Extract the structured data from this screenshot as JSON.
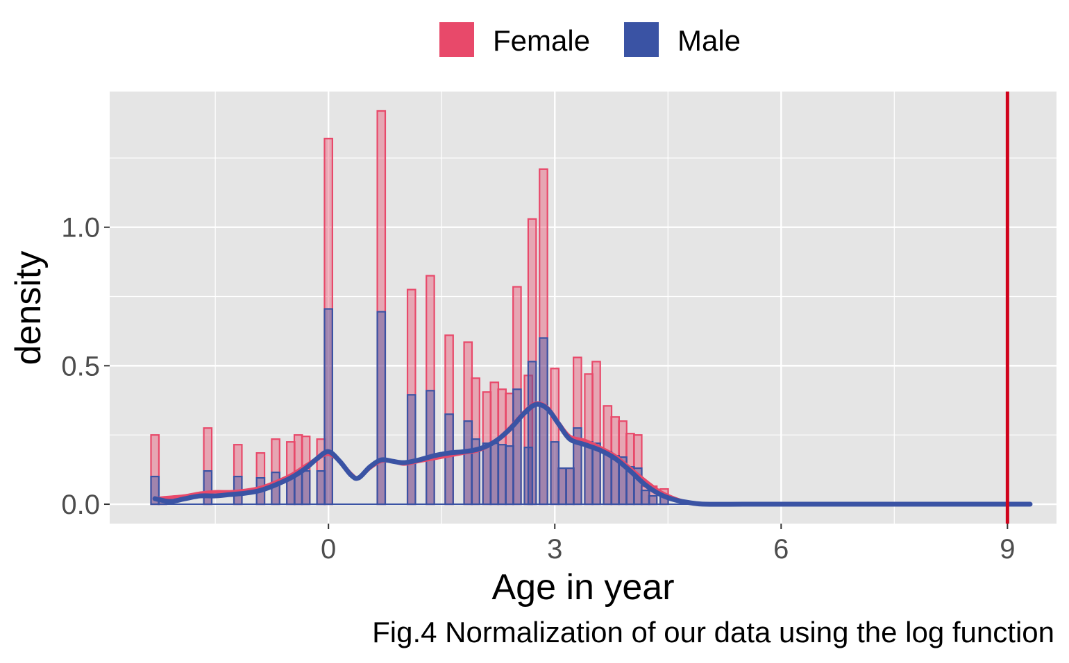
{
  "chart_data": {
    "type": "bar",
    "xlabel": "Age in year",
    "ylabel": "density",
    "caption": "Fig.4 Normalization of our data using the log function",
    "xlim": [
      -2.9,
      9.65
    ],
    "ylim": [
      -0.07,
      1.49
    ],
    "x_ticks": [
      0,
      3,
      6,
      9
    ],
    "x_tick_labels": [
      "0",
      "3",
      "6",
      "9"
    ],
    "y_ticks": [
      0.0,
      0.5,
      1.0
    ],
    "y_tick_labels": [
      "0.0",
      "0.5",
      "1.0"
    ],
    "grid": true,
    "legend": {
      "placement": "top",
      "entries": [
        {
          "label": "Female",
          "color": "#e8496a"
        },
        {
          "label": "Male",
          "color": "#3a53a4"
        }
      ]
    },
    "bin_width": 0.105,
    "series": [
      {
        "name": "Female",
        "color": "#e8496a",
        "bins": [
          {
            "x": -2.3,
            "value": 0.25
          },
          {
            "x": -2.2,
            "value": 0.02
          },
          {
            "x": -1.6,
            "value": 0.275
          },
          {
            "x": -1.2,
            "value": 0.215
          },
          {
            "x": -0.9,
            "value": 0.185
          },
          {
            "x": -0.7,
            "value": 0.235
          },
          {
            "x": -0.5,
            "value": 0.225
          },
          {
            "x": -0.4,
            "value": 0.25
          },
          {
            "x": -0.3,
            "value": 0.245
          },
          {
            "x": -0.1,
            "value": 0.235
          },
          {
            "x": 0.0,
            "value": 1.32
          },
          {
            "x": 0.7,
            "value": 1.42
          },
          {
            "x": 1.1,
            "value": 0.775
          },
          {
            "x": 1.35,
            "value": 0.825
          },
          {
            "x": 1.6,
            "value": 0.61
          },
          {
            "x": 1.85,
            "value": 0.585
          },
          {
            "x": 1.95,
            "value": 0.455
          },
          {
            "x": 2.1,
            "value": 0.405
          },
          {
            "x": 2.2,
            "value": 0.44
          },
          {
            "x": 2.3,
            "value": 0.415
          },
          {
            "x": 2.4,
            "value": 0.4
          },
          {
            "x": 2.5,
            "value": 0.785
          },
          {
            "x": 2.65,
            "value": 0.465
          },
          {
            "x": 2.7,
            "value": 1.03
          },
          {
            "x": 2.85,
            "value": 1.21
          },
          {
            "x": 3.0,
            "value": 0.49
          },
          {
            "x": 3.1,
            "value": 0.13
          },
          {
            "x": 3.2,
            "value": 0.13
          },
          {
            "x": 3.3,
            "value": 0.53
          },
          {
            "x": 3.45,
            "value": 0.47
          },
          {
            "x": 3.55,
            "value": 0.515
          },
          {
            "x": 3.7,
            "value": 0.355
          },
          {
            "x": 3.8,
            "value": 0.315
          },
          {
            "x": 3.9,
            "value": 0.3
          },
          {
            "x": 4.0,
            "value": 0.255
          },
          {
            "x": 4.1,
            "value": 0.25
          },
          {
            "x": 4.2,
            "value": 0.065
          },
          {
            "x": 4.3,
            "value": 0.065
          },
          {
            "x": 4.45,
            "value": 0.055
          }
        ],
        "density_curve": {
          "x": [
            -2.3,
            -2.1,
            -1.9,
            -1.7,
            -1.5,
            -1.3,
            -1.1,
            -0.9,
            -0.7,
            -0.5,
            -0.3,
            -0.15,
            0.0,
            0.15,
            0.3,
            0.4,
            0.55,
            0.7,
            0.85,
            1.0,
            1.2,
            1.4,
            1.6,
            1.8,
            2.0,
            2.2,
            2.4,
            2.6,
            2.75,
            2.9,
            3.05,
            3.2,
            3.4,
            3.6,
            3.8,
            4.0,
            4.2,
            4.4,
            4.6,
            4.8,
            5.0,
            5.5,
            6.0,
            7.0,
            8.0,
            9.0,
            9.3
          ],
          "y": [
            0.02,
            0.025,
            0.03,
            0.04,
            0.045,
            0.045,
            0.05,
            0.06,
            0.08,
            0.105,
            0.14,
            0.165,
            0.18,
            0.155,
            0.11,
            0.095,
            0.13,
            0.155,
            0.155,
            0.145,
            0.155,
            0.165,
            0.175,
            0.185,
            0.195,
            0.225,
            0.275,
            0.335,
            0.365,
            0.35,
            0.295,
            0.245,
            0.23,
            0.205,
            0.175,
            0.13,
            0.085,
            0.045,
            0.02,
            0.005,
            0.0,
            0.0,
            0.0,
            0.0,
            0.0,
            0.0,
            0.0
          ]
        }
      },
      {
        "name": "Male",
        "color": "#3a53a4",
        "bins": [
          {
            "x": -2.3,
            "value": 0.1
          },
          {
            "x": -2.2,
            "value": 0.02
          },
          {
            "x": -1.6,
            "value": 0.12
          },
          {
            "x": -1.2,
            "value": 0.1
          },
          {
            "x": -0.9,
            "value": 0.095
          },
          {
            "x": -0.7,
            "value": 0.115
          },
          {
            "x": -0.5,
            "value": 0.1
          },
          {
            "x": -0.4,
            "value": 0.115
          },
          {
            "x": -0.3,
            "value": 0.12
          },
          {
            "x": -0.1,
            "value": 0.12
          },
          {
            "x": 0.0,
            "value": 0.705
          },
          {
            "x": 0.7,
            "value": 0.695
          },
          {
            "x": 1.1,
            "value": 0.395
          },
          {
            "x": 1.35,
            "value": 0.41
          },
          {
            "x": 1.6,
            "value": 0.325
          },
          {
            "x": 1.85,
            "value": 0.3
          },
          {
            "x": 1.95,
            "value": 0.235
          },
          {
            "x": 2.1,
            "value": 0.22
          },
          {
            "x": 2.2,
            "value": 0.22
          },
          {
            "x": 2.3,
            "value": 0.215
          },
          {
            "x": 2.4,
            "value": 0.21
          },
          {
            "x": 2.5,
            "value": 0.415
          },
          {
            "x": 2.65,
            "value": 0.205
          },
          {
            "x": 2.7,
            "value": 0.515
          },
          {
            "x": 2.85,
            "value": 0.6
          },
          {
            "x": 3.0,
            "value": 0.225
          },
          {
            "x": 3.1,
            "value": 0.13
          },
          {
            "x": 3.2,
            "value": 0.13
          },
          {
            "x": 3.3,
            "value": 0.275
          },
          {
            "x": 3.45,
            "value": 0.225
          },
          {
            "x": 3.55,
            "value": 0.22
          },
          {
            "x": 3.7,
            "value": 0.19
          },
          {
            "x": 3.8,
            "value": 0.175
          },
          {
            "x": 3.9,
            "value": 0.17
          },
          {
            "x": 4.0,
            "value": 0.135
          },
          {
            "x": 4.1,
            "value": 0.13
          },
          {
            "x": 4.2,
            "value": 0.05
          },
          {
            "x": 4.3,
            "value": 0.03
          },
          {
            "x": 4.45,
            "value": 0.03
          }
        ],
        "density_curve": {
          "x": [
            -2.3,
            -2.1,
            -1.9,
            -1.7,
            -1.5,
            -1.3,
            -1.1,
            -0.9,
            -0.7,
            -0.5,
            -0.3,
            -0.15,
            0.0,
            0.15,
            0.3,
            0.4,
            0.55,
            0.7,
            0.85,
            1.0,
            1.2,
            1.4,
            1.6,
            1.8,
            2.0,
            2.2,
            2.4,
            2.6,
            2.75,
            2.9,
            3.05,
            3.2,
            3.4,
            3.6,
            3.8,
            4.0,
            4.2,
            4.4,
            4.6,
            4.8,
            5.0,
            5.5,
            6.0,
            7.0,
            8.0,
            9.0,
            9.3
          ],
          "y": [
            0.02,
            0.01,
            0.02,
            0.03,
            0.03,
            0.035,
            0.04,
            0.05,
            0.07,
            0.095,
            0.13,
            0.165,
            0.19,
            0.155,
            0.105,
            0.095,
            0.135,
            0.16,
            0.155,
            0.15,
            0.16,
            0.175,
            0.185,
            0.19,
            0.2,
            0.225,
            0.27,
            0.33,
            0.36,
            0.345,
            0.29,
            0.235,
            0.215,
            0.195,
            0.165,
            0.12,
            0.07,
            0.035,
            0.015,
            0.005,
            0.0,
            0.0,
            0.0,
            0.0,
            0.0,
            0.0,
            0.0
          ]
        }
      }
    ],
    "reference_line": {
      "x": 9,
      "color": "#d0021b"
    }
  }
}
